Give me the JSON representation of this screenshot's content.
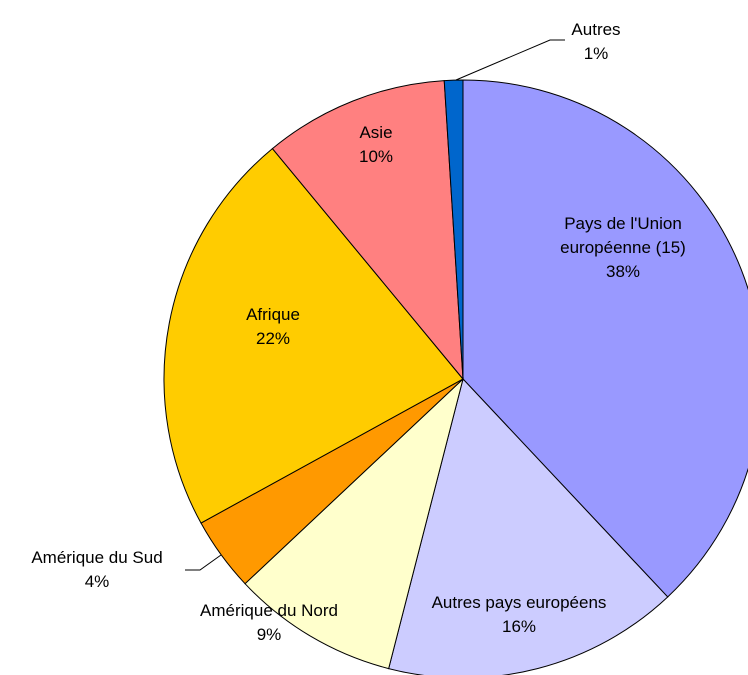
{
  "chart_data": {
    "type": "pie",
    "categories": [
      "Pays de l'Union européenne (15)",
      "Autres pays européens",
      "Amérique du Nord",
      "Amérique du Sud",
      "Afrique",
      "Asie",
      "Autres"
    ],
    "values": [
      38,
      16,
      9,
      4,
      22,
      10,
      1
    ],
    "value_labels": [
      "38%",
      "16%",
      "9%",
      "4%",
      "22%",
      "10%",
      "1%"
    ],
    "colors": [
      "#9999ff",
      "#ccccff",
      "#ffffcc",
      "#ff9900",
      "#ffcc00",
      "#ff8080",
      "#0066cc"
    ]
  }
}
